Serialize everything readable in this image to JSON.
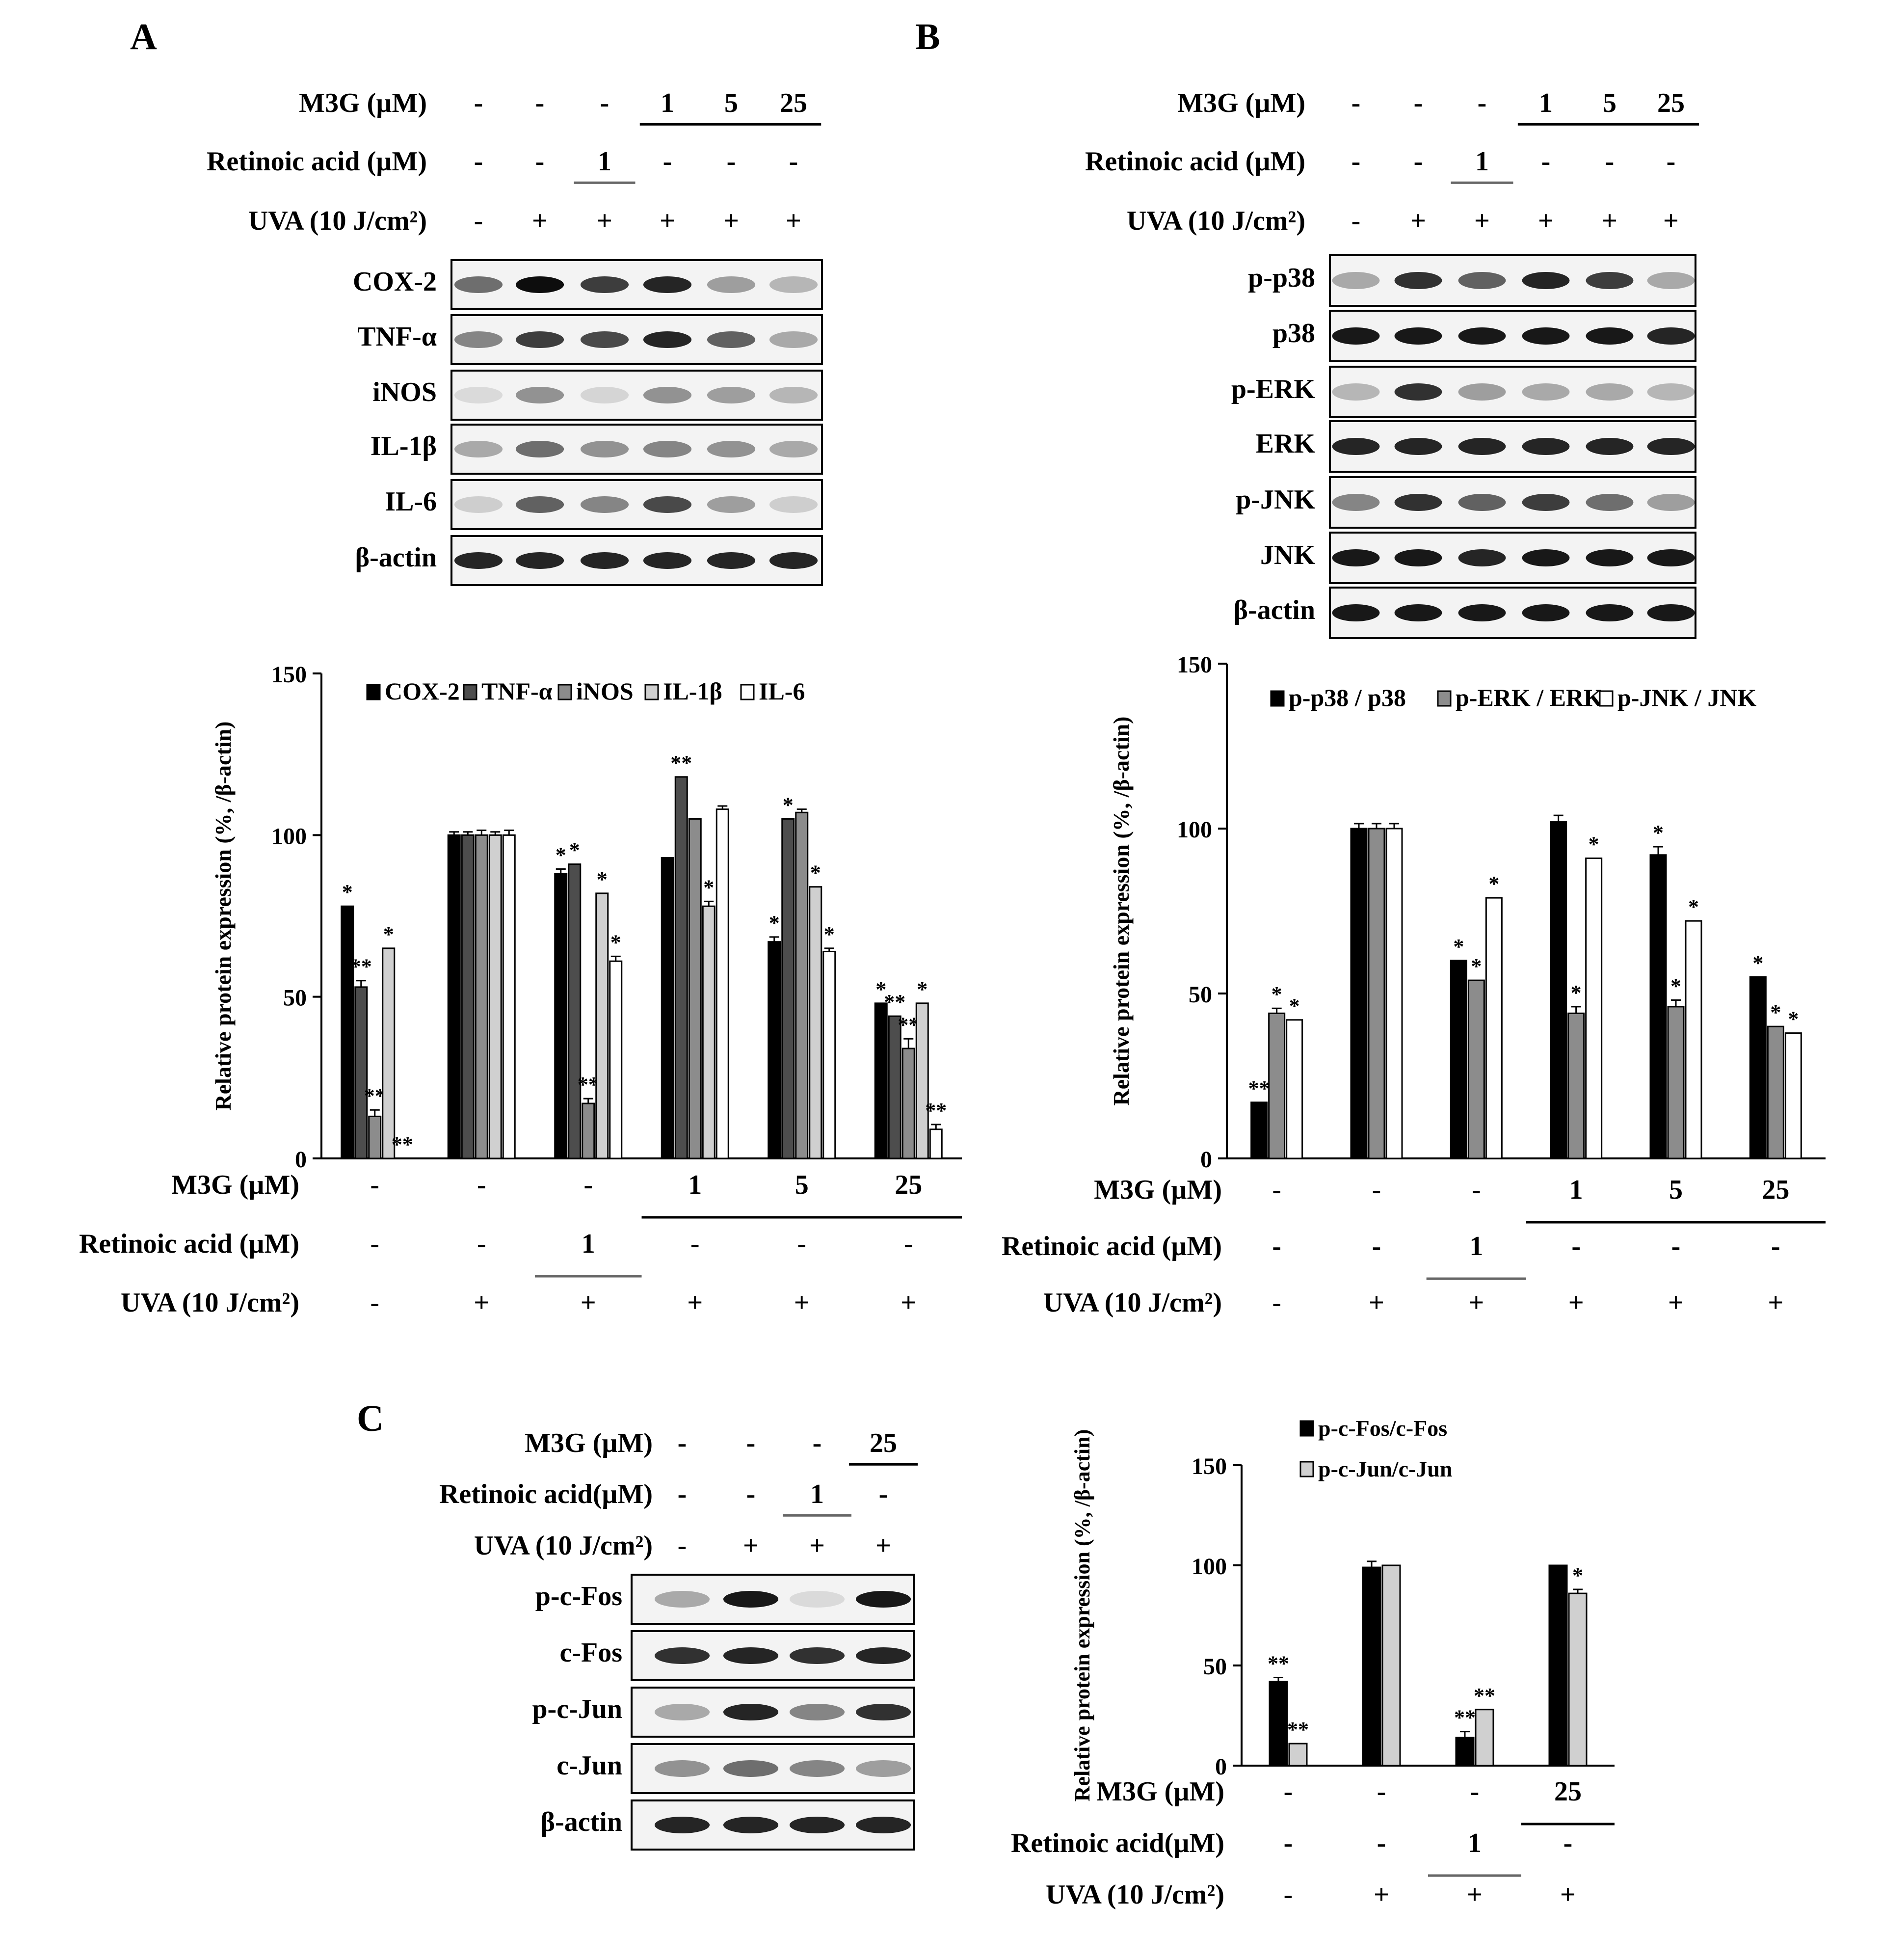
{
  "colors": {
    "black": "#000000",
    "dark_gray": "#4d4d4d",
    "gray": "#8c8c8c",
    "light_gray": "#d0d0d0",
    "white": "#ffffff"
  },
  "panels": {
    "A": {
      "letter": "A",
      "header": {
        "rows": [
          {
            "label": "M3G  (µM)",
            "values": [
              "-",
              "-",
              "-",
              "1",
              "5",
              "25"
            ]
          },
          {
            "label": "Retinoic acid (µM)",
            "values": [
              "-",
              "-",
              "1",
              "-",
              "-",
              "-"
            ]
          },
          {
            "label": "UVA  (10 J/cm²)",
            "values": [
              "-",
              "+",
              "+",
              "+",
              "+",
              "+"
            ]
          }
        ]
      },
      "blot_labels": [
        "COX-2",
        "TNF-α",
        "iNOS",
        "IL-1β",
        "IL-6",
        "β-actin"
      ]
    },
    "B": {
      "letter": "B",
      "header": {
        "rows": [
          {
            "label": "M3G  (µM)",
            "values": [
              "-",
              "-",
              "-",
              "1",
              "5",
              "25"
            ]
          },
          {
            "label": "Retinoic acid (µM)",
            "values": [
              "-",
              "-",
              "1",
              "-",
              "-",
              "-"
            ]
          },
          {
            "label": "UVA  (10 J/cm²)",
            "values": [
              "-",
              "+",
              "+",
              "+",
              "+",
              "+"
            ]
          }
        ]
      },
      "blot_labels": [
        "p-p38",
        "p38",
        "p-ERK",
        "ERK",
        "p-JNK",
        "JNK",
        "β-actin"
      ]
    },
    "C": {
      "letter": "C",
      "header": {
        "rows": [
          {
            "label": "M3G (µM)",
            "values": [
              "-",
              "-",
              "-",
              "25"
            ]
          },
          {
            "label": "Retinoic acid(µM)",
            "values": [
              "-",
              "-",
              "1",
              "-"
            ]
          },
          {
            "label": "UVA (10 J/cm²)",
            "values": [
              "-",
              "+",
              "+",
              "+"
            ]
          }
        ]
      },
      "blot_labels": [
        "p-c-Fos",
        "c-Fos",
        "p-c-Jun",
        "c-Jun",
        "β-actin"
      ]
    }
  },
  "chart_data": [
    {
      "id": "A",
      "type": "bar",
      "ylabel": "Relative protein expression (%, /β-actin)",
      "ylim": [
        0,
        150
      ],
      "yticks": [
        0,
        50,
        100,
        150
      ],
      "groups": 6,
      "legend_position": "top",
      "treatment_rows": [
        {
          "label": "M3G  (µM)",
          "values": [
            "-",
            "-",
            "-",
            "1",
            "5",
            "25"
          ]
        },
        {
          "label": "Retinoic acid (µM)",
          "values": [
            "-",
            "-",
            "1",
            "-",
            "-",
            "-"
          ]
        },
        {
          "label": "UVA  (10 J/cm²)",
          "values": [
            "-",
            "+",
            "+",
            "+",
            "+",
            "+"
          ]
        }
      ],
      "series": [
        {
          "name": "COX-2",
          "color": "#000000",
          "values": [
            78,
            100,
            88,
            93,
            67,
            48
          ],
          "errors": [
            0,
            1,
            1.5,
            0,
            1.5,
            0
          ],
          "sig": [
            "*",
            "",
            "*",
            "",
            "*",
            "*"
          ]
        },
        {
          "name": "TNF-α",
          "color": "#4d4d4d",
          "values": [
            53,
            100,
            91,
            118,
            105,
            44
          ],
          "errors": [
            2,
            1,
            0,
            0,
            0,
            0
          ],
          "sig": [
            "**",
            "",
            "*",
            "**",
            "*",
            "**"
          ]
        },
        {
          "name": "iNOS",
          "color": "#8c8c8c",
          "values": [
            13,
            100,
            17,
            105,
            107,
            34
          ],
          "errors": [
            2,
            1.5,
            1.5,
            0,
            1,
            3
          ],
          "sig": [
            "**",
            "",
            "**",
            "",
            "",
            "**"
          ]
        },
        {
          "name": "IL-1β",
          "color": "#d0d0d0",
          "values": [
            65,
            100,
            82,
            78,
            84,
            48
          ],
          "errors": [
            0,
            1,
            0,
            1.5,
            0,
            0
          ],
          "sig": [
            "*",
            "",
            "*",
            "*",
            "*",
            "*"
          ]
        },
        {
          "name": "IL-6",
          "color": "#ffffff",
          "values": [
            0,
            100,
            61,
            108,
            64,
            9
          ],
          "errors": [
            0,
            1.5,
            1.5,
            1,
            1,
            1.5
          ],
          "sig": [
            "**",
            "",
            "*",
            "",
            "*",
            "**"
          ]
        }
      ]
    },
    {
      "id": "B",
      "type": "bar",
      "ylabel": "Relative protein expression (%, /β-actin)",
      "ylim": [
        0,
        150
      ],
      "yticks": [
        0,
        50,
        100,
        150
      ],
      "groups": 6,
      "legend_position": "top",
      "treatment_rows": [
        {
          "label": "M3G  (µM)",
          "values": [
            "-",
            "-",
            "-",
            "1",
            "5",
            "25"
          ]
        },
        {
          "label": "Retinoic acid (µM)",
          "values": [
            "-",
            "-",
            "1",
            "-",
            "-",
            "-"
          ]
        },
        {
          "label": "UVA  (10 J/cm²)",
          "values": [
            "-",
            "+",
            "+",
            "+",
            "+",
            "+"
          ]
        }
      ],
      "series": [
        {
          "name": "p-p38 / p38",
          "color": "#000000",
          "values": [
            17,
            100,
            60,
            102,
            92,
            55
          ],
          "errors": [
            0,
            1.5,
            0,
            2,
            2.5,
            0
          ],
          "sig": [
            "**",
            "",
            "*",
            "",
            "*",
            "*"
          ]
        },
        {
          "name": "p-ERK / ERK",
          "color": "#8c8c8c",
          "values": [
            44,
            100,
            54,
            44,
            46,
            40
          ],
          "errors": [
            1.5,
            1.5,
            0,
            2,
            2,
            0
          ],
          "sig": [
            "*",
            "",
            "*",
            "*",
            "*",
            "*"
          ]
        },
        {
          "name": "p-JNK / JNK",
          "color": "#ffffff",
          "values": [
            42,
            100,
            79,
            91,
            72,
            38
          ],
          "errors": [
            0,
            1.5,
            0,
            0,
            0,
            0
          ],
          "sig": [
            "*",
            "",
            "*",
            "*",
            "*",
            "*"
          ]
        }
      ]
    },
    {
      "id": "C",
      "type": "bar",
      "ylabel": "Relative protein expression (%, /β-actin)",
      "ylim": [
        0,
        150
      ],
      "yticks": [
        0,
        50,
        100,
        150
      ],
      "groups": 4,
      "legend_position": "top",
      "treatment_rows": [
        {
          "label": "M3G (µM)",
          "values": [
            "-",
            "-",
            "-",
            "25"
          ]
        },
        {
          "label": "Retinoic acid(µM)",
          "values": [
            "-",
            "-",
            "1",
            "-"
          ]
        },
        {
          "label": "UVA (10 J/cm²)",
          "values": [
            "-",
            "+",
            "+",
            "+"
          ]
        }
      ],
      "series": [
        {
          "name": "p-c-Fos/c-Fos",
          "color": "#000000",
          "values": [
            42,
            99,
            14,
            100
          ],
          "errors": [
            2,
            3,
            3,
            0
          ],
          "sig": [
            "**",
            "",
            "**",
            ""
          ]
        },
        {
          "name": "p-c-Jun/c-Jun",
          "color": "#d0d0d0",
          "values": [
            11,
            100,
            28,
            86
          ],
          "errors": [
            0,
            0,
            0,
            2
          ],
          "sig": [
            "**",
            "",
            "**",
            "*"
          ]
        }
      ]
    }
  ]
}
